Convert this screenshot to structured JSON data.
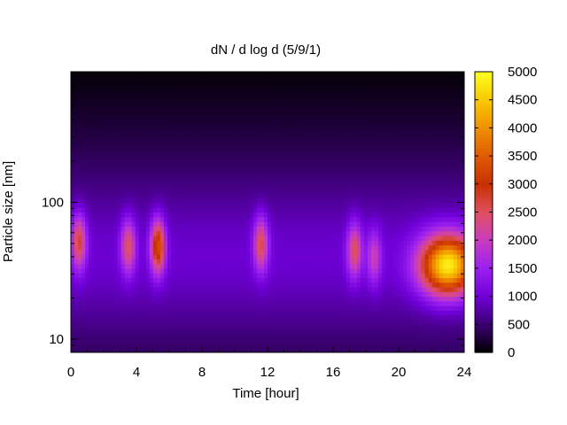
{
  "chart_data": {
    "type": "heatmap",
    "title": "dN / d log d (5/9/1)",
    "xlabel": "Time [hour]",
    "ylabel": "Particle size [nm]",
    "xlim": [
      0,
      24
    ],
    "x_ticks": [
      0,
      4,
      8,
      12,
      16,
      20,
      24
    ],
    "x_tick_labels": [
      "0",
      "4",
      "8",
      "12",
      "16",
      "20",
      "24"
    ],
    "y_scale": "log",
    "ylim": [
      8,
      900
    ],
    "y_ticks": [
      10,
      100
    ],
    "y_tick_labels": [
      "10",
      "100"
    ],
    "colorbar": {
      "range": [
        0,
        5000
      ],
      "ticks": [
        0,
        500,
        1000,
        1500,
        2000,
        2500,
        3000,
        3500,
        4000,
        4500,
        5000
      ],
      "tick_labels": [
        "0",
        "500",
        "1000",
        "1500",
        "2000",
        "2500",
        "3000",
        "3500",
        "4000",
        "4500",
        "5000"
      ],
      "palette": [
        "#000000",
        "#3a0070",
        "#7000d8",
        "#9a20f0",
        "#c83cc0",
        "#e05060",
        "#c83000",
        "#e05a00",
        "#f09000",
        "#f8c800",
        "#ffff20"
      ]
    },
    "grid": false,
    "background_color": "#000000",
    "modes": [
      {
        "time": 0.5,
        "size_nm": 52,
        "peak": 2700
      },
      {
        "time": 3.5,
        "size_nm": 48,
        "peak": 2500
      },
      {
        "time": 5.3,
        "size_nm": 48,
        "peak": 3300
      },
      {
        "time": 11.6,
        "size_nm": 50,
        "peak": 2600
      },
      {
        "time": 17.3,
        "size_nm": 45,
        "peak": 2500
      },
      {
        "time": 18.5,
        "size_nm": 40,
        "peak": 2000
      },
      {
        "time": 23.0,
        "size_nm": 35,
        "peak": 4800
      }
    ]
  }
}
